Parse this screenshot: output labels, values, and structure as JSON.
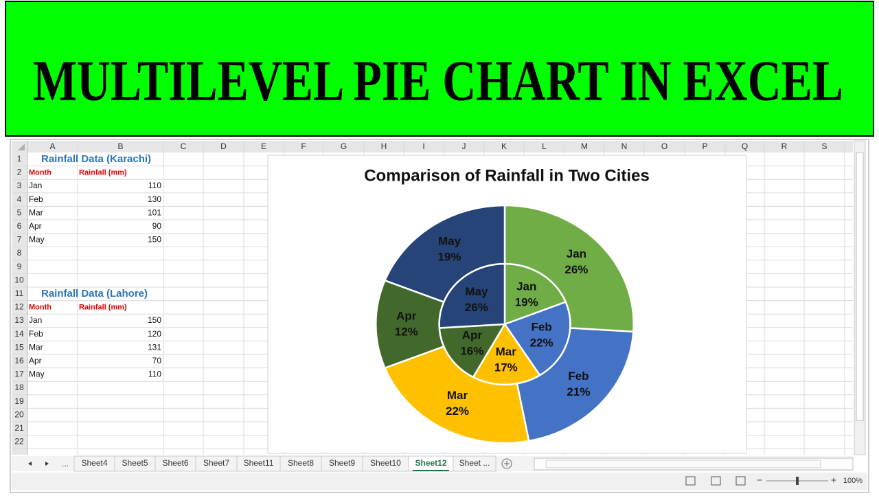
{
  "header": {
    "title": "MULTILEVEL PIE CHART IN EXCEL"
  },
  "sheet": {
    "columns": [
      "A",
      "B",
      "C",
      "D",
      "E",
      "F",
      "G",
      "H",
      "I",
      "J",
      "K",
      "L",
      "M",
      "N",
      "O",
      "P",
      "Q",
      "R",
      "S"
    ],
    "rows": [
      "1",
      "2",
      "3",
      "4",
      "5",
      "6",
      "7",
      "8",
      "9",
      "10",
      "11",
      "12",
      "13",
      "14",
      "15",
      "16",
      "17",
      "18",
      "19",
      "20",
      "21",
      "22"
    ],
    "tables": [
      {
        "title": "Rainfall Data (Karachi)",
        "headers": [
          "Month",
          "Rainfall (mm)"
        ],
        "rows": [
          [
            "Jan",
            "110"
          ],
          [
            "Feb",
            "130"
          ],
          [
            "Mar",
            "101"
          ],
          [
            "Apr",
            "90"
          ],
          [
            "May",
            "150"
          ]
        ]
      },
      {
        "title": "Rainfall Data (Lahore)",
        "headers": [
          "Month",
          "Rainfall (mm)"
        ],
        "rows": [
          [
            "Jan",
            "150"
          ],
          [
            "Feb",
            "120"
          ],
          [
            "Mar",
            "131"
          ],
          [
            "Apr",
            "70"
          ],
          [
            "May",
            "110"
          ]
        ]
      }
    ]
  },
  "chart_data": {
    "type": "pie",
    "title": "Comparison of Rainfall in Two Cities",
    "categories": [
      "Jan",
      "Feb",
      "Mar",
      "Apr",
      "May"
    ],
    "colors": [
      "#70ad47",
      "#4472c4",
      "#ffc000",
      "#43682b",
      "#264478"
    ],
    "series": [
      {
        "values": [
          19,
          22,
          17,
          16,
          26
        ],
        "value_labels": [
          "19%",
          "22%",
          "17%",
          "16%",
          "26%"
        ]
      },
      {
        "values": [
          26,
          21,
          22,
          12,
          19
        ],
        "value_labels": [
          "26%",
          "21%",
          "22%",
          "12%",
          "19%"
        ]
      }
    ]
  },
  "tabs": {
    "overflow": "...",
    "sheets": [
      "Sheet4",
      "Sheet5",
      "Sheet6",
      "Sheet7",
      "Sheet11",
      "Sheet8",
      "Sheet9",
      "Sheet10",
      "Sheet12",
      "Sheet ..."
    ],
    "active": 8
  },
  "status": {
    "zoom_minus": "−",
    "zoom_plus": "+",
    "zoom": "100%"
  }
}
